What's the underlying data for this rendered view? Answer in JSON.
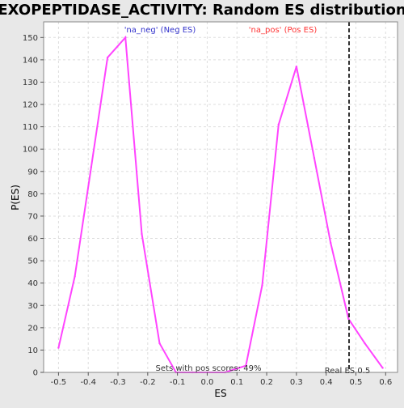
{
  "chart_data": {
    "type": "line",
    "title": "EXOPEPTIDASE_ACTIVITY: Random ES distribution",
    "xlabel": "ES",
    "ylabel": "P(ES)",
    "xlim": [
      -0.55,
      0.64
    ],
    "ylim": [
      0,
      157
    ],
    "x_ticks": [
      -0.5,
      -0.4,
      -0.3,
      -0.2,
      -0.1,
      0.0,
      0.1,
      0.2,
      0.3,
      0.4,
      0.5,
      0.6
    ],
    "x_tick_labels": [
      "-0.5",
      "-0.4",
      "-0.3",
      "-0.2",
      "-0.1",
      "0.0",
      "0.1",
      "0.2",
      "0.3",
      "0.4",
      "0.5",
      "0.6"
    ],
    "y_ticks": [
      0,
      10,
      20,
      30,
      40,
      50,
      60,
      70,
      80,
      90,
      100,
      110,
      120,
      130,
      140,
      150
    ],
    "y_tick_labels": [
      "0",
      "10",
      "20",
      "30",
      "40",
      "50",
      "60",
      "70",
      "80",
      "90",
      "100",
      "110",
      "120",
      "130",
      "140",
      "150"
    ],
    "grid": true,
    "series": [
      {
        "color": "#ff44ff",
        "x": [
          -0.5,
          -0.445,
          -0.39,
          -0.335,
          -0.275,
          -0.22,
          -0.16,
          -0.105,
          -0.05,
          0.0,
          0.06,
          0.13,
          0.185,
          0.24,
          0.3,
          0.36,
          0.415,
          0.475,
          0.53,
          0.59
        ],
        "y": [
          11,
          43,
          92,
          141,
          150,
          62,
          13,
          0,
          0,
          0,
          0,
          3,
          39,
          111,
          137,
          96,
          58,
          24,
          13,
          2
        ]
      }
    ],
    "annotations": {
      "neg_label": "'na_neg' (Neg ES)",
      "pos_label": "'na_pos' (Pos ES)",
      "pos_scores": "Sets with pos scores: 49%",
      "real_es": "Real ES 0.5"
    },
    "real_es_x": 0.477,
    "colors": {
      "neg_text": "#3333cc",
      "pos_text": "#ff3333",
      "curve": "#ff44ff",
      "plot_bg": "#ffffff",
      "frame": "#000000"
    }
  }
}
